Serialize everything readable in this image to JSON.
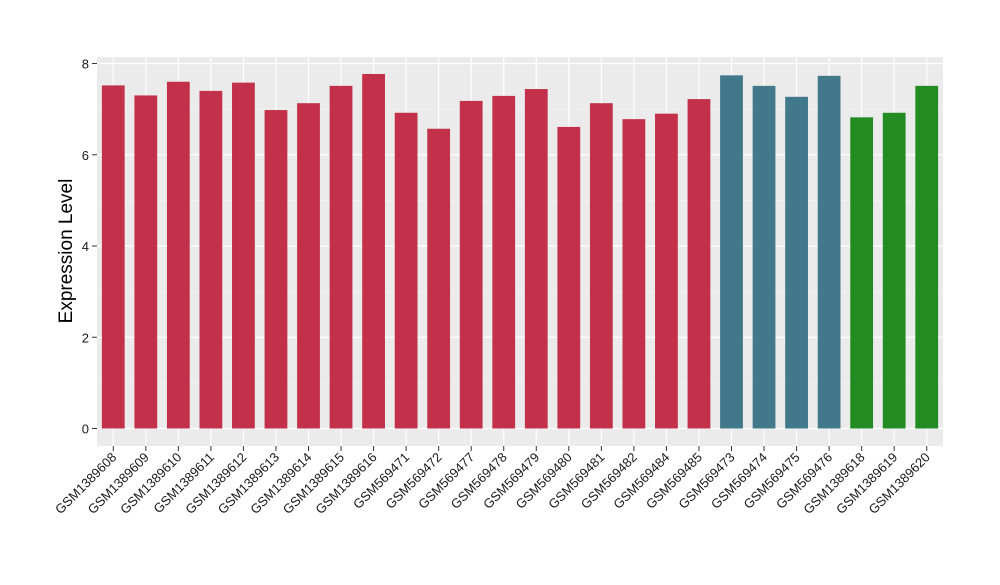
{
  "chart_data": {
    "type": "bar",
    "title": "",
    "xlabel": "",
    "ylabel": "Expression Level",
    "ylim": [
      0,
      8.2
    ],
    "yticks": [
      0,
      2,
      4,
      6,
      8
    ],
    "grid": true,
    "legend": "none",
    "categories": [
      "GSM1389608",
      "GSM1389609",
      "GSM1389610",
      "GSM1389611",
      "GSM1389612",
      "GSM1389613",
      "GSM1389614",
      "GSM1389615",
      "GSM1389616",
      "GSM569471",
      "GSM569472",
      "GSM569477",
      "GSM569478",
      "GSM569479",
      "GSM569480",
      "GSM569481",
      "GSM569482",
      "GSM569484",
      "GSM569485",
      "GSM569473",
      "GSM569474",
      "GSM569475",
      "GSM569476",
      "GSM1389618",
      "GSM1389619",
      "GSM1389620"
    ],
    "values": [
      7.52,
      7.3,
      7.6,
      7.4,
      7.58,
      6.98,
      7.13,
      7.51,
      7.77,
      6.92,
      6.57,
      7.18,
      7.29,
      7.44,
      6.61,
      7.13,
      6.78,
      6.9,
      7.22,
      7.74,
      7.51,
      7.27,
      7.73,
      6.82,
      6.92,
      7.51
    ],
    "bar_colors": [
      "#c3304a",
      "#c3304a",
      "#c3304a",
      "#c3304a",
      "#c3304a",
      "#c3304a",
      "#c3304a",
      "#c3304a",
      "#c3304a",
      "#c3304a",
      "#c3304a",
      "#c3304a",
      "#c3304a",
      "#c3304a",
      "#c3304a",
      "#c3304a",
      "#c3304a",
      "#c3304a",
      "#c3304a",
      "#41788a",
      "#41788a",
      "#41788a",
      "#41788a",
      "#228b22",
      "#228b22",
      "#228b22"
    ],
    "panel_background": "#ebebeb",
    "grid_color": "#ffffff"
  }
}
